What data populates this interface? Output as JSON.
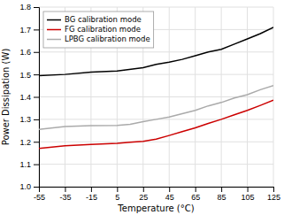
{
  "chart_data": {
    "type": "line",
    "xlabel": "Temperature (°C)",
    "ylabel": "Power Dissipation (W)",
    "xlim": [
      -55,
      125
    ],
    "ylim": [
      1.0,
      1.8
    ],
    "xticks": [
      -55,
      -35,
      -15,
      5,
      25,
      45,
      65,
      85,
      105,
      125
    ],
    "yticks": [
      {
        "value": 1.0,
        "label": "1.0"
      },
      1.1,
      1.2,
      1.3,
      1.4,
      1.5,
      1.6,
      1.7,
      1.8
    ],
    "grid": true,
    "legend": "upper left",
    "series": [
      {
        "name": "BG calibration mode",
        "color": "#000000",
        "x": [
          -55,
          -35,
          -15,
          5,
          25,
          35,
          45,
          55,
          65,
          75,
          85,
          95,
          105,
          115,
          125
        ],
        "values": [
          1.495,
          1.5,
          1.51,
          1.515,
          1.53,
          1.545,
          1.555,
          1.567,
          1.583,
          1.6,
          1.612,
          1.635,
          1.658,
          1.682,
          1.71
        ]
      },
      {
        "name": "FG calibration mode",
        "color": "#cc0000",
        "x": [
          -55,
          -35,
          -15,
          5,
          15,
          25,
          35,
          45,
          55,
          65,
          75,
          85,
          95,
          105,
          115,
          125
        ],
        "values": [
          1.17,
          1.182,
          1.188,
          1.193,
          1.198,
          1.202,
          1.212,
          1.228,
          1.245,
          1.262,
          1.282,
          1.3,
          1.32,
          1.34,
          1.362,
          1.385
        ]
      },
      {
        "name": "LPBG calibration mode",
        "color": "#aaaaaa",
        "x": [
          -55,
          -35,
          -15,
          5,
          15,
          25,
          35,
          45,
          55,
          65,
          75,
          85,
          95,
          105,
          115,
          125
        ],
        "values": [
          1.255,
          1.268,
          1.272,
          1.273,
          1.278,
          1.29,
          1.3,
          1.31,
          1.325,
          1.34,
          1.36,
          1.375,
          1.395,
          1.41,
          1.432,
          1.45
        ]
      }
    ]
  }
}
